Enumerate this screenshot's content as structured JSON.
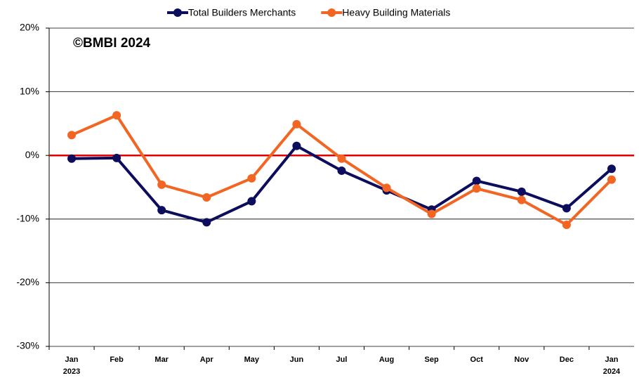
{
  "chart_data": {
    "type": "line",
    "annotation": "©BMBI 2024",
    "categories": [
      "Jan 2023",
      "Feb",
      "Mar",
      "Apr",
      "May",
      "Jun",
      "Jul",
      "Aug",
      "Sep",
      "Oct",
      "Nov",
      "Dec",
      "Jan 2024"
    ],
    "series": [
      {
        "name": "Total Builders Merchants",
        "color": "#0d0d5e",
        "values": [
          -0.5,
          -0.4,
          -8.6,
          -10.5,
          -7.2,
          1.5,
          -2.4,
          -5.5,
          -8.5,
          -4.0,
          -5.7,
          -8.3,
          -2.1
        ]
      },
      {
        "name": "Heavy Building Materials",
        "color": "#f26522",
        "values": [
          3.2,
          6.3,
          -4.6,
          -6.6,
          -3.6,
          4.9,
          -0.5,
          -5.1,
          -9.2,
          -5.2,
          -7.0,
          -10.9,
          -3.8
        ]
      }
    ],
    "ylim": [
      -30,
      20
    ],
    "yticks": [
      {
        "value": -30,
        "label": "-30%"
      },
      {
        "value": -20,
        "label": "-20%"
      },
      {
        "value": -10,
        "label": "-10%"
      },
      {
        "value": 0,
        "label": "0%"
      },
      {
        "value": 10,
        "label": "10%"
      },
      {
        "value": 20,
        "label": "20%"
      }
    ],
    "grid": true,
    "reference_line": {
      "value": 0,
      "color": "#e00000"
    },
    "legend": "top"
  }
}
